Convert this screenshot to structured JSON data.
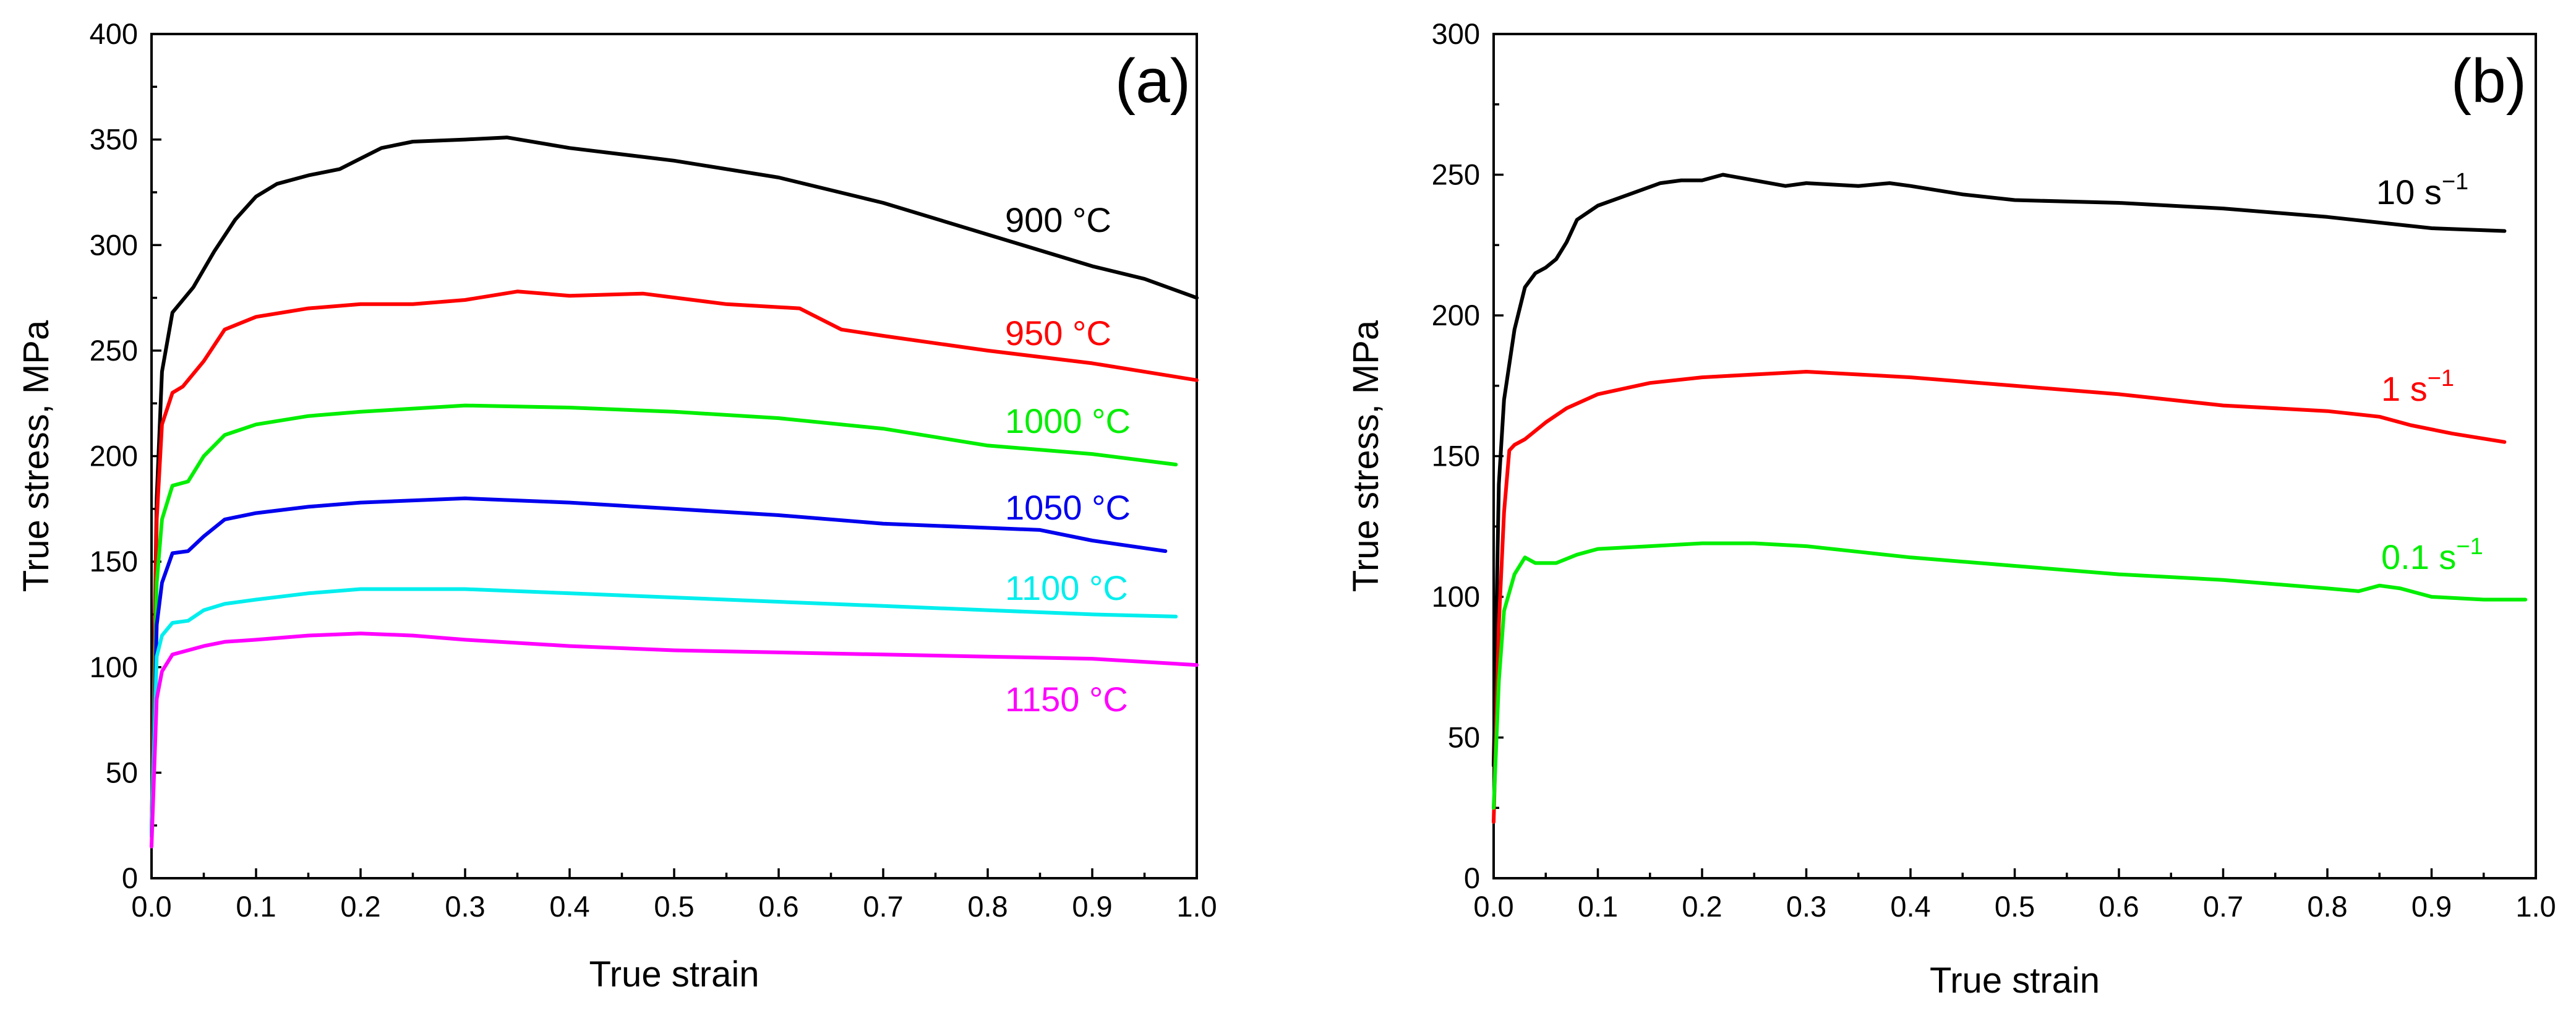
{
  "chart_data": [
    {
      "type": "line",
      "panel": "(a)",
      "xlabel": "True strain",
      "ylabel": "True stress, MPa",
      "xlim": [
        0,
        1.0
      ],
      "ylim": [
        0,
        400
      ],
      "xticks": [
        "0.0",
        "0.1",
        "0.2",
        "0.3",
        "0.4",
        "0.5",
        "0.6",
        "0.7",
        "0.8",
        "0.9",
        "1.0"
      ],
      "yticks": [
        "0",
        "50",
        "100",
        "150",
        "200",
        "250",
        "300",
        "350",
        "400"
      ],
      "grid": false,
      "series": [
        {
          "name": "900 °C",
          "label": "900 °C",
          "color": "#000000",
          "x": [
            0,
            0.005,
            0.01,
            0.02,
            0.04,
            0.06,
            0.08,
            0.1,
            0.12,
            0.15,
            0.18,
            0.2,
            0.22,
            0.25,
            0.3,
            0.34,
            0.4,
            0.5,
            0.6,
            0.7,
            0.8,
            0.9,
            0.95,
            1.0
          ],
          "y": [
            20,
            180,
            240,
            268,
            280,
            297,
            312,
            323,
            329,
            333,
            336,
            341,
            346,
            349,
            350,
            351,
            346,
            340,
            332,
            320,
            305,
            290,
            284,
            275
          ]
        },
        {
          "name": "950 °C",
          "label": "950 °C",
          "color": "#ff0000",
          "x": [
            0,
            0.005,
            0.01,
            0.02,
            0.03,
            0.05,
            0.07,
            0.1,
            0.15,
            0.2,
            0.25,
            0.3,
            0.35,
            0.4,
            0.47,
            0.55,
            0.62,
            0.66,
            0.7,
            0.8,
            0.9,
            1.0
          ],
          "y": [
            20,
            170,
            215,
            230,
            233,
            245,
            260,
            266,
            270,
            272,
            272,
            274,
            278,
            276,
            277,
            272,
            270,
            260,
            257,
            250,
            244,
            236
          ]
        },
        {
          "name": "1000 °C",
          "label": "1000 °C",
          "color": "#00ee00",
          "x": [
            0,
            0.005,
            0.01,
            0.02,
            0.035,
            0.05,
            0.07,
            0.1,
            0.15,
            0.2,
            0.3,
            0.4,
            0.5,
            0.6,
            0.7,
            0.8,
            0.9,
            0.98
          ],
          "y": [
            20,
            140,
            170,
            186,
            188,
            200,
            210,
            215,
            219,
            221,
            224,
            223,
            221,
            218,
            213,
            205,
            201,
            196
          ]
        },
        {
          "name": "1050 °C",
          "label": "1050 °C",
          "color": "#0000ee",
          "x": [
            0,
            0.005,
            0.01,
            0.02,
            0.035,
            0.05,
            0.07,
            0.1,
            0.15,
            0.2,
            0.3,
            0.4,
            0.5,
            0.6,
            0.7,
            0.8,
            0.85,
            0.9,
            0.97
          ],
          "y": [
            20,
            120,
            140,
            154,
            155,
            162,
            170,
            173,
            176,
            178,
            180,
            178,
            175,
            172,
            168,
            166,
            165,
            160,
            155
          ]
        },
        {
          "name": "1100 °C",
          "label": "1100 °C",
          "color": "#00eeee",
          "x": [
            0,
            0.005,
            0.01,
            0.02,
            0.035,
            0.05,
            0.07,
            0.1,
            0.15,
            0.2,
            0.3,
            0.4,
            0.5,
            0.6,
            0.7,
            0.8,
            0.9,
            0.98
          ],
          "y": [
            20,
            105,
            115,
            121,
            122,
            127,
            130,
            132,
            135,
            137,
            137,
            135,
            133,
            131,
            129,
            127,
            125,
            124
          ]
        },
        {
          "name": "1150 °C",
          "label": "1150 °C",
          "color": "#ff00ff",
          "x": [
            0,
            0.005,
            0.01,
            0.02,
            0.035,
            0.05,
            0.07,
            0.1,
            0.15,
            0.2,
            0.25,
            0.3,
            0.4,
            0.5,
            0.6,
            0.7,
            0.8,
            0.9,
            1.0
          ],
          "y": [
            15,
            85,
            98,
            106,
            108,
            110,
            112,
            113,
            115,
            116,
            115,
            113,
            110,
            108,
            107,
            106,
            105,
            104,
            101
          ]
        }
      ]
    },
    {
      "type": "line",
      "panel": "(b)",
      "xlabel": "True strain",
      "ylabel": "True stress, MPa",
      "xlim": [
        0,
        1.0
      ],
      "ylim": [
        0,
        300
      ],
      "xticks": [
        "0.0",
        "0.1",
        "0.2",
        "0.3",
        "0.4",
        "0.5",
        "0.6",
        "0.7",
        "0.8",
        "0.9",
        "1.0"
      ],
      "yticks": [
        "0",
        "50",
        "100",
        "150",
        "200",
        "250",
        "300"
      ],
      "grid": false,
      "series": [
        {
          "name": "10 s⁻¹",
          "label_base": "10 s",
          "label_sup": "−1",
          "color": "#000000",
          "x": [
            0,
            0.005,
            0.01,
            0.02,
            0.03,
            0.04,
            0.05,
            0.06,
            0.07,
            0.08,
            0.1,
            0.13,
            0.16,
            0.18,
            0.2,
            0.22,
            0.25,
            0.28,
            0.3,
            0.35,
            0.38,
            0.4,
            0.45,
            0.5,
            0.6,
            0.7,
            0.8,
            0.9,
            0.97
          ],
          "y": [
            40,
            140,
            170,
            195,
            210,
            215,
            217,
            220,
            226,
            234,
            239,
            243,
            247,
            248,
            248,
            250,
            248,
            246,
            247,
            246,
            247,
            246,
            243,
            241,
            240,
            238,
            235,
            231,
            230
          ]
        },
        {
          "name": "1 s⁻¹",
          "label_base": "1 s",
          "label_sup": "−1",
          "color": "#ff0000",
          "x": [
            0,
            0.005,
            0.01,
            0.015,
            0.02,
            0.03,
            0.05,
            0.07,
            0.1,
            0.15,
            0.2,
            0.25,
            0.3,
            0.35,
            0.4,
            0.5,
            0.6,
            0.7,
            0.8,
            0.85,
            0.88,
            0.92,
            0.97
          ],
          "y": [
            20,
            90,
            130,
            152,
            154,
            156,
            162,
            167,
            172,
            176,
            178,
            179,
            180,
            179,
            178,
            175,
            172,
            168,
            166,
            164,
            161,
            158,
            155
          ]
        },
        {
          "name": "0.1 s⁻¹",
          "label_base": "0.1 s",
          "label_sup": "−1",
          "color": "#00ee00",
          "x": [
            0,
            0.005,
            0.01,
            0.02,
            0.03,
            0.04,
            0.06,
            0.08,
            0.1,
            0.15,
            0.2,
            0.25,
            0.3,
            0.35,
            0.4,
            0.5,
            0.6,
            0.7,
            0.8,
            0.83,
            0.85,
            0.87,
            0.9,
            0.95,
            0.99
          ],
          "y": [
            25,
            70,
            95,
            108,
            114,
            112,
            112,
            115,
            117,
            118,
            119,
            119,
            118,
            116,
            114,
            111,
            108,
            106,
            103,
            102,
            104,
            103,
            100,
            99,
            99
          ]
        }
      ]
    }
  ]
}
